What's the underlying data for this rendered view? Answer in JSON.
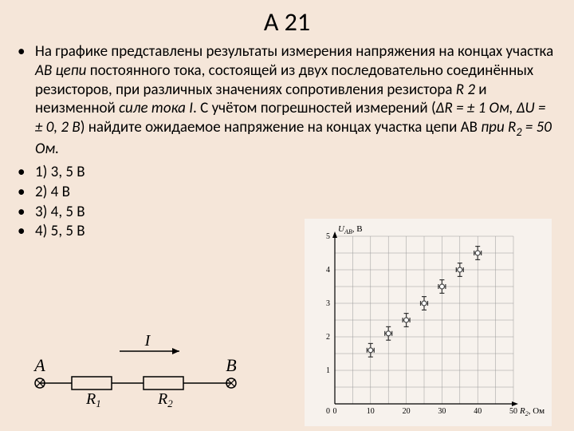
{
  "title": "А 21",
  "problem": {
    "prefix": "На графике представлены результаты измерения напряжения на концах участка ",
    "seg_ab": "АВ цепи",
    "mid1": " постоянного тока, состоящей из двух последовательно соединённых резисторов, при различных значениях сопротивления резистора ",
    "r2": "R 2",
    "mid2": " и неизменной ",
    "force": "силе тока I",
    "mid3": ". С учётом погрешностей измерений (",
    "dr": "ΔR = ± 1 Ом, ΔU = ± 0, 2 В",
    "mid4": ") найдите ожидаемое напряжение на концах участка цепи АВ ",
    "cond": "при R",
    "cond_sub": "2",
    "cond_end": " = 50 Ом."
  },
  "options": [
    "1) 3, 5 В",
    "2) 4 В",
    "3) 4, 5 В",
    "4) 5, 5 В"
  ],
  "circuit": {
    "A": "A",
    "B": "B",
    "I": "I",
    "R1": "R",
    "R1_sub": "1",
    "R2": "R",
    "R2_sub": "2"
  },
  "chart": {
    "ylabel": "U",
    "ylabel_sub": "АВ",
    "yunit": ", В",
    "xlabel": "R",
    "xlabel_sub": "2",
    "xunit": ", Ом",
    "xlim": [
      0,
      50
    ],
    "ylim": [
      0,
      5
    ],
    "xticks": [
      0,
      10,
      20,
      30,
      40,
      50
    ],
    "yticks": [
      0,
      1,
      2,
      3,
      4,
      5
    ],
    "grid_color": "#999999",
    "bg_color": "#f7f2ed",
    "point_color": "#444444",
    "error_bar_color": "#333333",
    "points": [
      {
        "x": 10,
        "y": 1.6,
        "dx": 1,
        "dy": 0.2
      },
      {
        "x": 15,
        "y": 2.1,
        "dx": 1,
        "dy": 0.2
      },
      {
        "x": 20,
        "y": 2.5,
        "dx": 1,
        "dy": 0.2
      },
      {
        "x": 25,
        "y": 3.0,
        "dx": 1,
        "dy": 0.2
      },
      {
        "x": 30,
        "y": 3.5,
        "dx": 1,
        "dy": 0.2
      },
      {
        "x": 35,
        "y": 4.0,
        "dx": 1,
        "dy": 0.2
      },
      {
        "x": 40,
        "y": 4.5,
        "dx": 1,
        "dy": 0.2
      }
    ],
    "marker_radius": 3,
    "fontsize": 10
  }
}
